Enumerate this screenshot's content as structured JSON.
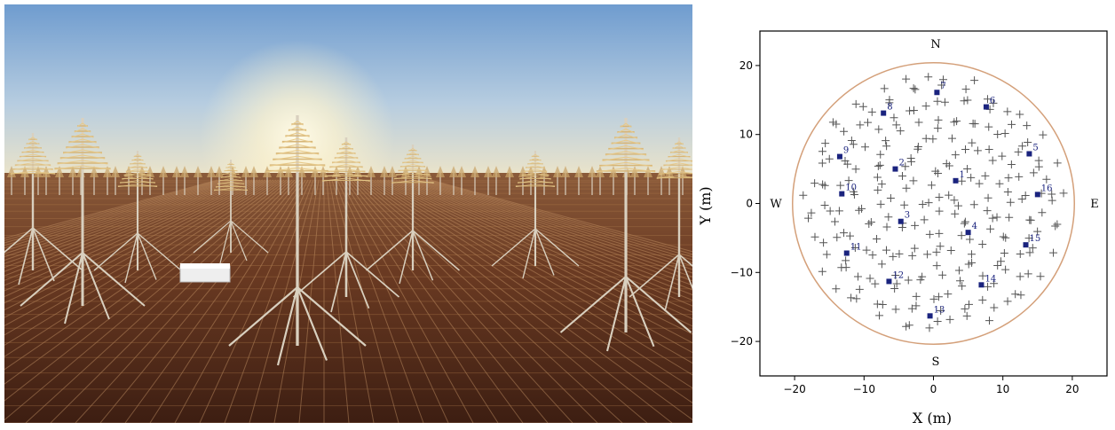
{
  "photo": {
    "subject": "antenna-field-at-sunrise",
    "colors": {
      "sky_top": "#6f9ccf",
      "sky_mid": "#b7cde0",
      "sky_horizon": "#f3e7c6",
      "ground": "#6a3a22",
      "metal": "#d9d0bf",
      "sun": "#fffbe8"
    }
  },
  "chart_data": {
    "type": "scatter",
    "xlabel": "X (m)",
    "ylabel": "Y (m)",
    "xlim": [
      -25,
      25
    ],
    "ylim": [
      -25,
      25
    ],
    "xticks": [
      -20,
      -10,
      0,
      10,
      20
    ],
    "yticks": [
      -20,
      -10,
      0,
      10,
      20
    ],
    "grid": false,
    "compass": {
      "north": "N",
      "south": "S",
      "east": "E",
      "west": "W"
    },
    "boundary": {
      "shape": "circle",
      "center": [
        0,
        0
      ],
      "radius": 20.3,
      "color": "#d4a07a"
    },
    "marker_colors": {
      "antenna": "#555555",
      "highlighted": "#1a237e"
    },
    "antenna_positions": {
      "marker": "+",
      "layout": "approximate quasi-random fill of the circle (~256 antennas)"
    },
    "highlighted": [
      {
        "label": "1",
        "x": 3.2,
        "y": 3.3
      },
      {
        "label": "2",
        "x": -5.5,
        "y": 5.0
      },
      {
        "label": "3",
        "x": -4.7,
        "y": -2.6
      },
      {
        "label": "4",
        "x": 5.0,
        "y": -4.2
      },
      {
        "label": "5",
        "x": 13.8,
        "y": 7.2
      },
      {
        "label": "6",
        "x": 7.6,
        "y": 14.0
      },
      {
        "label": "7",
        "x": 0.5,
        "y": 16.1
      },
      {
        "label": "8",
        "x": -7.2,
        "y": 13.1
      },
      {
        "label": "9",
        "x": -13.5,
        "y": 6.8
      },
      {
        "label": "10",
        "x": -13.2,
        "y": 1.4
      },
      {
        "label": "11",
        "x": -12.5,
        "y": -7.2
      },
      {
        "label": "12",
        "x": -6.4,
        "y": -11.3
      },
      {
        "label": "13",
        "x": -0.5,
        "y": -16.3
      },
      {
        "label": "14",
        "x": 6.9,
        "y": -11.8
      },
      {
        "label": "15",
        "x": 13.3,
        "y": -6.0
      },
      {
        "label": "16",
        "x": 15.0,
        "y": 1.3
      }
    ]
  }
}
